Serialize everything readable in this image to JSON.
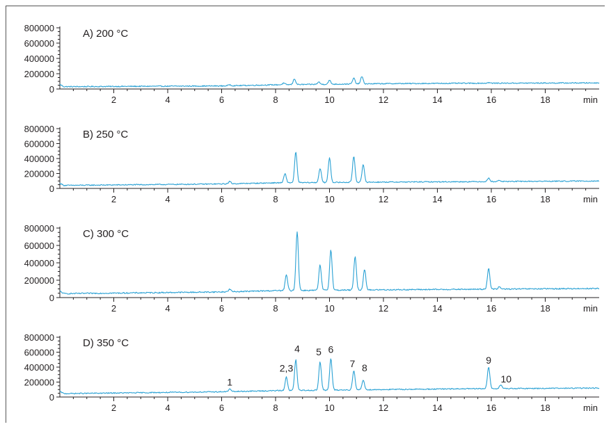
{
  "chart_data": [
    {
      "type": "line",
      "title": "A) 200 °C",
      "xlabel": "min",
      "xlim": [
        0,
        20
      ],
      "ylim": [
        0,
        800000
      ],
      "x_ticks": [
        2,
        4,
        6,
        8,
        10,
        12,
        14,
        16,
        18
      ],
      "y_ticks": [
        0,
        200000,
        400000,
        600000,
        800000
      ],
      "x_tick_labels": [
        "2",
        "4",
        "6",
        "8",
        "10",
        "12",
        "14",
        "16",
        "18"
      ],
      "y_tick_labels": [
        "0",
        "200000",
        "400000",
        "600000",
        "800000"
      ],
      "series": [
        {
          "baseline": [
            [
              0,
              30000
            ],
            [
              6,
              40000
            ],
            [
              8,
              55000
            ],
            [
              12,
              70000
            ],
            [
              15,
              75000
            ],
            [
              20,
              80000
            ]
          ],
          "peaks": [
            [
              6.3,
              15000
            ],
            [
              8.3,
              20000
            ],
            [
              8.7,
              75000
            ],
            [
              9.6,
              30000
            ],
            [
              10.0,
              50000
            ],
            [
              10.9,
              75000
            ],
            [
              11.2,
              95000
            ],
            [
              15.9,
              8000
            ]
          ]
        }
      ],
      "peak_labels": []
    },
    {
      "type": "line",
      "title": "B) 250 °C",
      "xlabel": "min",
      "xlim": [
        0,
        20
      ],
      "ylim": [
        0,
        800000
      ],
      "x_ticks": [
        2,
        4,
        6,
        8,
        10,
        12,
        14,
        16,
        18
      ],
      "y_ticks": [
        0,
        200000,
        400000,
        600000,
        800000
      ],
      "x_tick_labels": [
        "2",
        "4",
        "6",
        "8",
        "10",
        "12",
        "14",
        "16",
        "18"
      ],
      "y_tick_labels": [
        "0",
        "200000",
        "400000",
        "600000",
        "800000"
      ],
      "series": [
        {
          "baseline": [
            [
              0,
              40000
            ],
            [
              6,
              60000
            ],
            [
              8,
              75000
            ],
            [
              12,
              85000
            ],
            [
              15,
              90000
            ],
            [
              20,
              100000
            ]
          ],
          "peaks": [
            [
              6.3,
              30000
            ],
            [
              8.35,
              120000
            ],
            [
              8.75,
              410000
            ],
            [
              9.65,
              190000
            ],
            [
              10.0,
              330000
            ],
            [
              10.9,
              350000
            ],
            [
              11.25,
              230000
            ],
            [
              15.9,
              45000
            ],
            [
              16.3,
              15000
            ]
          ]
        }
      ],
      "peak_labels": []
    },
    {
      "type": "line",
      "title": "C) 300 °C",
      "xlabel": "min",
      "xlim": [
        0,
        20
      ],
      "ylim": [
        0,
        800000
      ],
      "x_ticks": [
        2,
        4,
        6,
        8,
        10,
        12,
        14,
        16,
        18
      ],
      "y_ticks": [
        0,
        200000,
        400000,
        600000,
        800000
      ],
      "x_tick_labels": [
        "2",
        "4",
        "6",
        "8",
        "10",
        "12",
        "14",
        "16",
        "18"
      ],
      "y_tick_labels": [
        "0",
        "200000",
        "400000",
        "600000",
        "800000"
      ],
      "series": [
        {
          "baseline": [
            [
              0,
              45000
            ],
            [
              6,
              65000
            ],
            [
              8,
              80000
            ],
            [
              12,
              90000
            ],
            [
              15,
              95000
            ],
            [
              20,
              105000
            ]
          ],
          "peaks": [
            [
              6.3,
              30000
            ],
            [
              8.4,
              180000
            ],
            [
              8.8,
              680000
            ],
            [
              9.65,
              290000
            ],
            [
              10.05,
              470000
            ],
            [
              10.95,
              390000
            ],
            [
              11.3,
              240000
            ],
            [
              15.9,
              240000
            ],
            [
              16.3,
              25000
            ]
          ]
        }
      ],
      "peak_labels": []
    },
    {
      "type": "line",
      "title": "D) 350 °C",
      "xlabel": "min",
      "xlim": [
        0,
        20
      ],
      "ylim": [
        0,
        800000
      ],
      "x_ticks": [
        2,
        4,
        6,
        8,
        10,
        12,
        14,
        16,
        18
      ],
      "y_ticks": [
        0,
        200000,
        400000,
        600000,
        800000
      ],
      "x_tick_labels": [
        "2",
        "4",
        "6",
        "8",
        "10",
        "12",
        "14",
        "16",
        "18"
      ],
      "y_tick_labels": [
        "0",
        "200000",
        "400000",
        "600000",
        "800000"
      ],
      "series": [
        {
          "baseline": [
            [
              0,
              45000
            ],
            [
              6,
              70000
            ],
            [
              8,
              85000
            ],
            [
              12,
              100000
            ],
            [
              15,
              110000
            ],
            [
              20,
              120000
            ]
          ],
          "peaks": [
            [
              6.3,
              35000
            ],
            [
              8.4,
              180000
            ],
            [
              8.75,
              410000
            ],
            [
              9.65,
              380000
            ],
            [
              10.05,
              420000
            ],
            [
              10.9,
              260000
            ],
            [
              11.25,
              130000
            ],
            [
              15.9,
              290000
            ],
            [
              16.35,
              50000
            ]
          ]
        }
      ],
      "peak_labels": [
        {
          "text": "1",
          "x": 6.3,
          "y": 155000
        },
        {
          "text": "2,3",
          "x": 8.4,
          "y": 340000
        },
        {
          "text": "4",
          "x": 8.8,
          "y": 600000
        },
        {
          "text": "5",
          "x": 9.6,
          "y": 560000
        },
        {
          "text": "6",
          "x": 10.05,
          "y": 590000
        },
        {
          "text": "7",
          "x": 10.85,
          "y": 400000
        },
        {
          "text": "8",
          "x": 11.3,
          "y": 345000
        },
        {
          "text": "9",
          "x": 15.9,
          "y": 445000
        },
        {
          "text": "10",
          "x": 16.55,
          "y": 195000
        }
      ]
    }
  ],
  "colors": {
    "trace": "#2aa1d4",
    "axis": "#231f20",
    "frame": "#555555"
  }
}
